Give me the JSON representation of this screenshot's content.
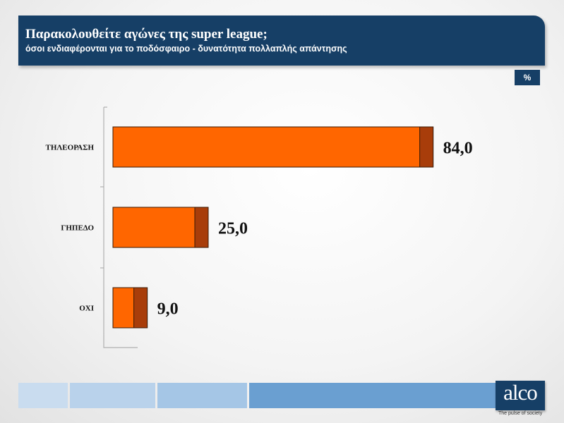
{
  "header": {
    "title": "Παρακολουθείτε αγώνες της super league;",
    "subtitle": "όσοι ενδιαφέρονται για το ποδόσφαιρο  - δυνατότητα πολλαπλής απάντησης"
  },
  "unit_badge": "%",
  "colors": {
    "header_bg": "#163f66",
    "bar_fill": "#ff6600",
    "bar_end": "#a83d0a",
    "footer_segments": [
      "#c9dcef",
      "#b9d2eb",
      "#a5c6e6",
      "#6a9fd1"
    ]
  },
  "chart_data": {
    "type": "bar",
    "orientation": "horizontal",
    "categories": [
      "ΤΗΛΕΟΡΑΣΗ",
      "ΓΗΠΕΔΟ",
      "ΟΧΙ"
    ],
    "values": [
      84.0,
      25.0,
      9.0
    ],
    "value_labels": [
      "84,0",
      "25,0",
      "9,0"
    ],
    "title": "Παρακολουθείτε αγώνες της super league;",
    "unit": "%",
    "xlim": [
      0,
      100
    ],
    "grid": false,
    "legend": "none"
  },
  "logo": {
    "text": "alco",
    "tagline": "The pulse of society"
  }
}
